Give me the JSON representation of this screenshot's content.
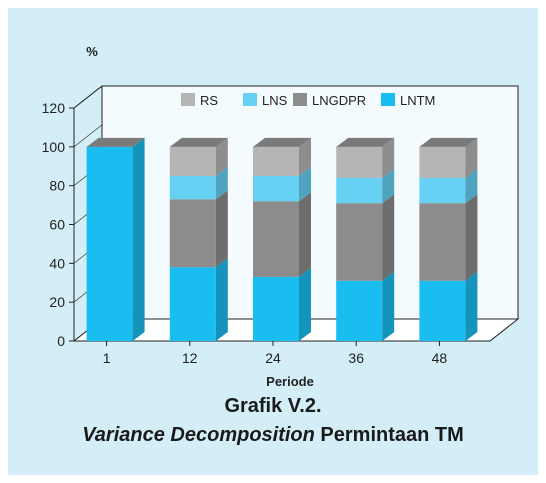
{
  "colors": {
    "panel_bg": "#d4eef8",
    "RS": "#b5b5b5",
    "LNS": "#66d1f3",
    "LNGDPR": "#8c8c8c",
    "LNTM": "#19bdf0"
  },
  "chart_data": {
    "type": "bar",
    "stacked": true,
    "three_d": true,
    "categories": [
      "1",
      "12",
      "24",
      "36",
      "48"
    ],
    "series": [
      {
        "name": "LNTM",
        "values": [
          100,
          38,
          33,
          31,
          31
        ]
      },
      {
        "name": "LNGDPR",
        "values": [
          0,
          35,
          39,
          40,
          40
        ]
      },
      {
        "name": "LNS",
        "values": [
          0,
          12,
          13,
          13,
          13
        ]
      },
      {
        "name": "RS",
        "values": [
          0,
          15,
          15,
          16,
          16
        ]
      }
    ],
    "legend_order": [
      "RS",
      "LNS",
      "LNGDPR",
      "LNTM"
    ],
    "legend_position": "top-right inside plot",
    "ylabel": "%",
    "xlabel": "Periode",
    "ylim": [
      0,
      120
    ],
    "yticks": [
      0,
      20,
      40,
      60,
      80,
      100,
      120
    ],
    "grid": false
  },
  "caption": {
    "label": "Grafik V.2.",
    "title_italic": "Variance Decomposition",
    "title_rest": " Permintaan TM"
  }
}
